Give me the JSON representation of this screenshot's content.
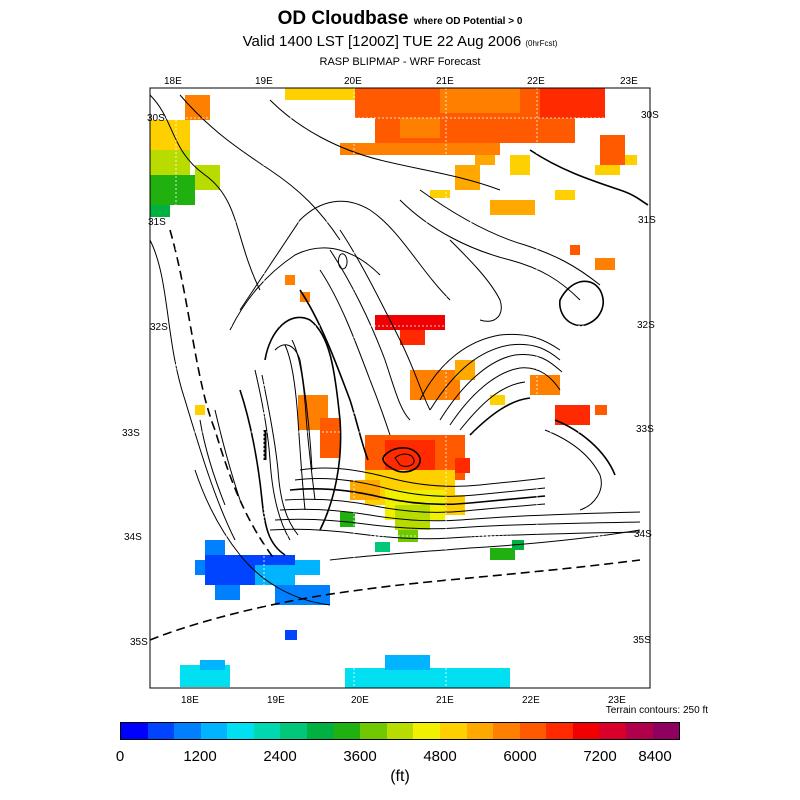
{
  "header": {
    "title": "OD Cloudbase",
    "title_qualifier": "where OD Potential > 0",
    "subtitle": "Valid 1400 LST [1200Z] TUE 22 Aug 2006",
    "forecast_tag": "(0hrFcst)",
    "source": "RASP BLIPMAP - WRF Forecast"
  },
  "map": {
    "lon_labels_top": [
      "18E",
      "19E",
      "20E",
      "21E",
      "22E",
      "23E"
    ],
    "lon_labels_bottom": [
      "18E",
      "19E",
      "20E",
      "21E",
      "22E",
      "23E"
    ],
    "lat_labels_left": [
      "30S",
      "31S",
      "32S",
      "33S",
      "34S",
      "35S"
    ],
    "lat_labels_right": [
      "30S",
      "31S",
      "32S",
      "33S",
      "34S",
      "35S"
    ],
    "terrain_note": "Terrain contours: 250 ft"
  },
  "colorbar": {
    "colors": [
      "#0000ff",
      "#0044ff",
      "#0080ff",
      "#00b4ff",
      "#00e0f0",
      "#00d8b0",
      "#00c878",
      "#00b040",
      "#20b010",
      "#70c800",
      "#b8dc00",
      "#f0f000",
      "#ffd000",
      "#ffa800",
      "#ff8000",
      "#ff5a00",
      "#ff2a00",
      "#f00000",
      "#d8002a",
      "#b0004c",
      "#900060"
    ],
    "tick_labels": [
      "0",
      "1200",
      "2400",
      "3600",
      "4800",
      "6000",
      "7200",
      "8400"
    ],
    "units": "(ft)"
  }
}
